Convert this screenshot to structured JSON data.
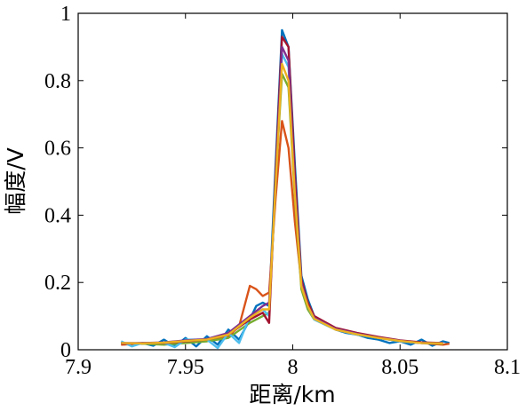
{
  "chart_data": {
    "type": "line",
    "title": "",
    "xlabel": "距离/km",
    "ylabel": "幅度/V",
    "xlim": [
      7.9,
      8.1
    ],
    "ylim": [
      0,
      1
    ],
    "xticks": [
      "7.9",
      "7.95",
      "8",
      "8.05",
      "8.1"
    ],
    "yticks": [
      "0",
      "0.2",
      "0.4",
      "0.6",
      "0.8",
      "1"
    ],
    "grid": false,
    "legend": "none",
    "series": [
      {
        "color": "#0072bd",
        "x": [
          7.92,
          7.925,
          7.93,
          7.935,
          7.94,
          7.945,
          7.95,
          7.955,
          7.96,
          7.965,
          7.97,
          7.975,
          7.98,
          7.983,
          7.986,
          7.989,
          7.992,
          7.995,
          7.998,
          8.001,
          8.004,
          8.007,
          8.01,
          8.015,
          8.02,
          8.025,
          8.03,
          8.035,
          8.04,
          8.045,
          8.05,
          8.055,
          8.06,
          8.065,
          8.07,
          8.073
        ],
        "y": [
          0.02,
          0.015,
          0.02,
          0.012,
          0.03,
          0.01,
          0.035,
          0.01,
          0.04,
          0.015,
          0.06,
          0.03,
          0.09,
          0.13,
          0.14,
          0.13,
          0.55,
          0.95,
          0.9,
          0.55,
          0.22,
          0.15,
          0.1,
          0.08,
          0.06,
          0.05,
          0.045,
          0.035,
          0.03,
          0.02,
          0.025,
          0.015,
          0.03,
          0.012,
          0.025,
          0.02
        ]
      },
      {
        "color": "#d95319",
        "x": [
          7.92,
          7.93,
          7.94,
          7.95,
          7.96,
          7.97,
          7.975,
          7.98,
          7.983,
          7.986,
          7.989,
          7.992,
          7.995,
          7.998,
          8.001,
          8.004,
          8.007,
          8.01,
          8.015,
          8.02,
          8.03,
          8.04,
          8.05,
          8.06,
          8.07,
          8.073
        ],
        "y": [
          0.015,
          0.018,
          0.02,
          0.025,
          0.03,
          0.04,
          0.07,
          0.19,
          0.18,
          0.16,
          0.17,
          0.45,
          0.68,
          0.6,
          0.38,
          0.2,
          0.14,
          0.1,
          0.08,
          0.06,
          0.045,
          0.035,
          0.025,
          0.02,
          0.015,
          0.018
        ]
      },
      {
        "color": "#77ac30",
        "x": [
          7.92,
          7.93,
          7.94,
          7.95,
          7.96,
          7.97,
          7.98,
          7.986,
          7.989,
          7.992,
          7.995,
          7.998,
          8.001,
          8.004,
          8.007,
          8.01,
          8.02,
          8.03,
          8.04,
          8.05,
          8.06,
          8.07
        ],
        "y": [
          0.02,
          0.018,
          0.015,
          0.02,
          0.025,
          0.035,
          0.08,
          0.1,
          0.11,
          0.5,
          0.82,
          0.78,
          0.45,
          0.18,
          0.12,
          0.09,
          0.06,
          0.045,
          0.035,
          0.025,
          0.02,
          0.018
        ]
      },
      {
        "color": "#4dbeee",
        "x": [
          7.92,
          7.925,
          7.93,
          7.94,
          7.945,
          7.95,
          7.96,
          7.965,
          7.97,
          7.975,
          7.98,
          7.986,
          7.989,
          7.992,
          7.995,
          7.998,
          8.001,
          8.004,
          8.007,
          8.01,
          8.02,
          8.03,
          8.04,
          8.05,
          8.06,
          8.07
        ],
        "y": [
          0.025,
          0.01,
          0.02,
          0.02,
          0.008,
          0.03,
          0.03,
          0.005,
          0.05,
          0.02,
          0.1,
          0.12,
          0.1,
          0.5,
          0.88,
          0.84,
          0.5,
          0.2,
          0.13,
          0.09,
          0.06,
          0.045,
          0.035,
          0.025,
          0.02,
          0.02
        ]
      },
      {
        "color": "#a2142f",
        "x": [
          7.92,
          7.93,
          7.94,
          7.95,
          7.96,
          7.97,
          7.98,
          7.986,
          7.989,
          7.992,
          7.995,
          7.998,
          8.001,
          8.004,
          8.007,
          8.01,
          8.02,
          8.03,
          8.04,
          8.05,
          8.06,
          8.07
        ],
        "y": [
          0.018,
          0.02,
          0.02,
          0.025,
          0.03,
          0.045,
          0.09,
          0.11,
          0.08,
          0.52,
          0.93,
          0.9,
          0.52,
          0.21,
          0.14,
          0.1,
          0.065,
          0.05,
          0.038,
          0.028,
          0.022,
          0.02
        ]
      },
      {
        "color": "#7e2f8e",
        "x": [
          7.92,
          7.93,
          7.94,
          7.95,
          7.96,
          7.97,
          7.98,
          7.986,
          7.989,
          7.992,
          7.995,
          7.998,
          8.001,
          8.004,
          8.007,
          8.01,
          8.02,
          8.03,
          8.04,
          8.05,
          8.06,
          8.07
        ],
        "y": [
          0.02,
          0.02,
          0.022,
          0.028,
          0.032,
          0.05,
          0.1,
          0.13,
          0.14,
          0.48,
          0.9,
          0.86,
          0.48,
          0.2,
          0.13,
          0.095,
          0.062,
          0.048,
          0.036,
          0.027,
          0.02,
          0.02
        ]
      },
      {
        "color": "#edb120",
        "x": [
          7.92,
          7.93,
          7.94,
          7.95,
          7.96,
          7.97,
          7.98,
          7.986,
          7.989,
          7.992,
          7.995,
          7.998,
          8.001,
          8.004,
          8.007,
          8.01,
          8.02,
          8.03,
          8.04,
          8.05,
          8.06,
          8.07
        ],
        "y": [
          0.02,
          0.019,
          0.021,
          0.026,
          0.03,
          0.045,
          0.095,
          0.12,
          0.12,
          0.49,
          0.85,
          0.8,
          0.46,
          0.19,
          0.13,
          0.092,
          0.06,
          0.046,
          0.035,
          0.026,
          0.02,
          0.019
        ]
      }
    ]
  }
}
